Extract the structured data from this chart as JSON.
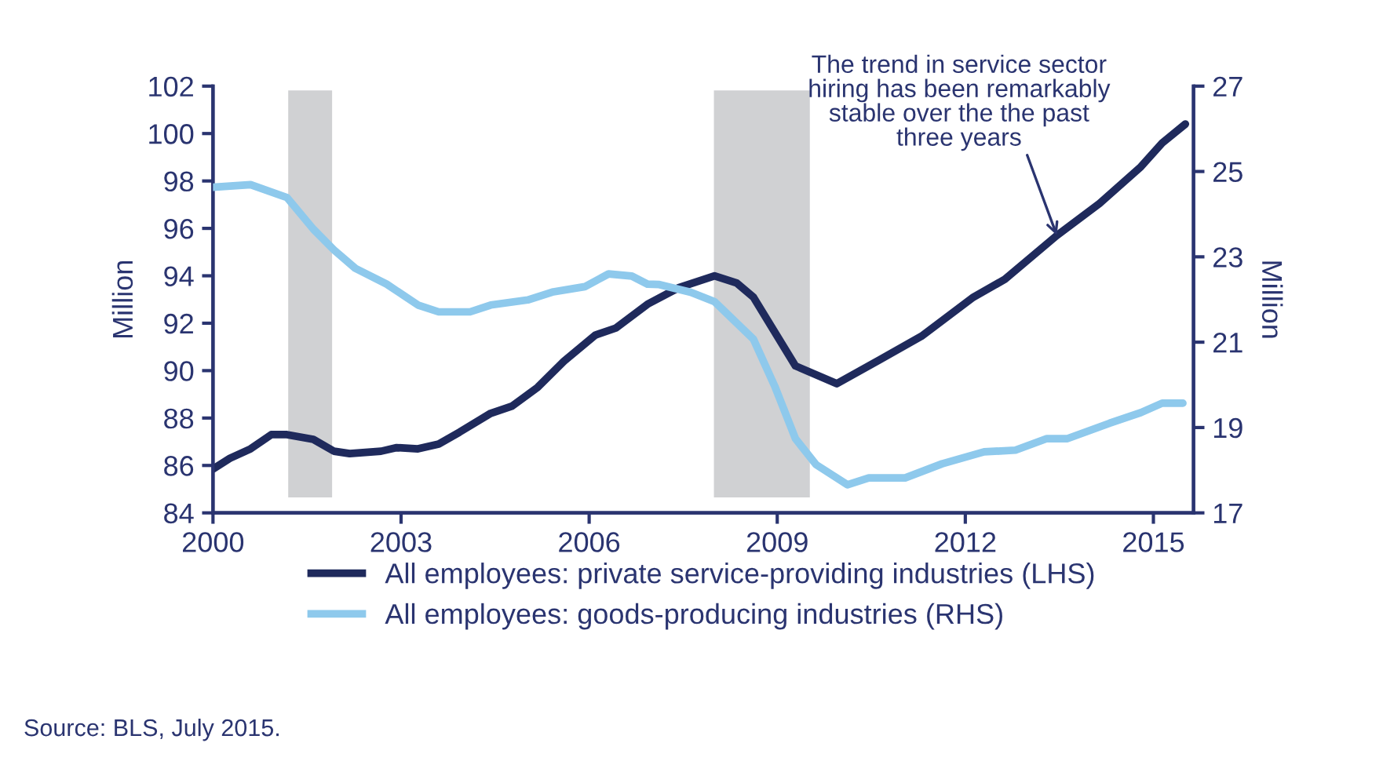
{
  "chart_data": {
    "type": "line",
    "ylabel": "Million",
    "y2label": "Million",
    "xlim": [
      2000,
      2015.64
    ],
    "xticks": [
      2000,
      2003,
      2006,
      2009,
      2012,
      2015
    ],
    "ylim": [
      84,
      102
    ],
    "yticks": [
      84,
      86,
      88,
      90,
      92,
      94,
      96,
      98,
      100,
      102
    ],
    "y2lim": [
      17,
      27
    ],
    "y2ticks": [
      17,
      19,
      21,
      23,
      25,
      27
    ],
    "grid": false,
    "legend": "bottom",
    "marker": "none",
    "line_style": "solid",
    "series": [
      {
        "name": "All employees: private service-providing industries (LHS)",
        "color": "#1f2a5c",
        "axis": "y",
        "x": [
          2000.0,
          2000.27,
          2000.6,
          2000.93,
          2001.18,
          2001.6,
          2001.93,
          2002.18,
          2002.68,
          2002.93,
          2003.27,
          2003.6,
          2003.93,
          2004.43,
          2004.77,
          2005.18,
          2005.6,
          2006.1,
          2006.43,
          2006.93,
          2007.43,
          2008.0,
          2008.35,
          2008.62,
          2009.29,
          2009.95,
          2010.63,
          2011.3,
          2012.13,
          2012.63,
          2013.46,
          2014.14,
          2014.8,
          2015.14,
          2015.51
        ],
        "values": [
          85.85,
          86.3,
          86.7,
          87.3,
          87.3,
          87.1,
          86.6,
          86.5,
          86.6,
          86.75,
          86.7,
          86.9,
          87.4,
          88.2,
          88.5,
          89.3,
          90.4,
          91.5,
          91.8,
          92.8,
          93.5,
          94.0,
          93.7,
          93.1,
          90.2,
          89.45,
          90.45,
          91.45,
          93.1,
          93.85,
          95.7,
          97.05,
          98.6,
          99.6,
          100.4
        ]
      },
      {
        "name": "All employees: goods-producing industries (RHS)",
        "color": "#8ec9ec",
        "axis": "y2",
        "x": [
          2000.0,
          2000.6,
          2001.18,
          2001.6,
          2001.93,
          2002.27,
          2002.77,
          2003.27,
          2003.6,
          2004.1,
          2004.43,
          2005.02,
          2005.43,
          2005.93,
          2006.31,
          2006.68,
          2006.93,
          2007.12,
          2007.62,
          2008.0,
          2008.62,
          2008.96,
          2009.29,
          2009.62,
          2010.12,
          2010.46,
          2011.04,
          2011.63,
          2012.3,
          2012.8,
          2013.3,
          2013.63,
          2014.3,
          2014.8,
          2015.14,
          2015.47
        ],
        "values": [
          24.63,
          24.69,
          24.39,
          23.65,
          23.16,
          22.73,
          22.36,
          21.87,
          21.71,
          21.71,
          21.87,
          21.99,
          22.18,
          22.3,
          22.6,
          22.55,
          22.36,
          22.35,
          22.17,
          21.95,
          21.07,
          19.97,
          18.74,
          18.13,
          17.66,
          17.82,
          17.82,
          18.15,
          18.43,
          18.47,
          18.74,
          18.74,
          19.1,
          19.35,
          19.57,
          19.57
        ]
      }
    ],
    "bands": [
      {
        "axis": "x",
        "from": 2001.2,
        "to": 2001.9,
        "color": "#d0d1d3"
      },
      {
        "axis": "x",
        "from": 2007.99,
        "to": 2009.52,
        "color": "#d0d1d3"
      }
    ],
    "annotations": [
      {
        "text": "The trend in service sector\nhiring has been remarkably\nstable over the the past\nthree years",
        "x": 2013.46,
        "y": 95.7
      },
      "Source: BLS, July 2015."
    ]
  }
}
